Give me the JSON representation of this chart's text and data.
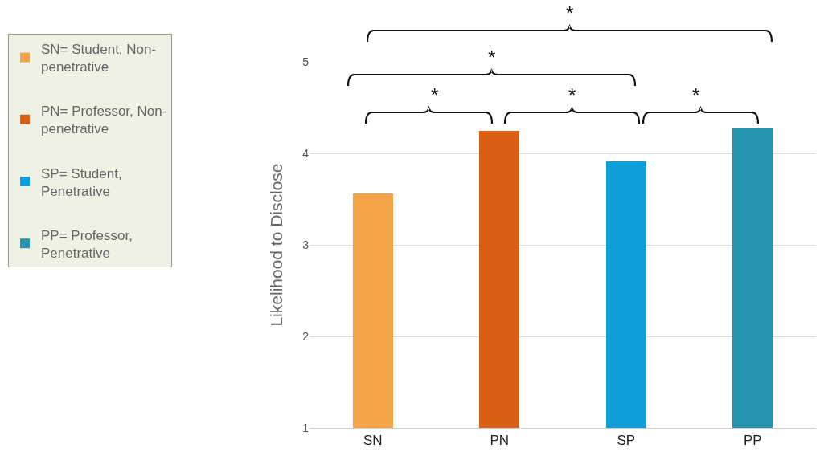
{
  "chart_data": {
    "type": "bar",
    "categories": [
      "SN",
      "PN",
      "SP",
      "PP"
    ],
    "series": [
      {
        "name": "SN= Student, Non-penetrative",
        "color": "#f4a346",
        "values": [
          3.56,
          null,
          null,
          null
        ]
      },
      {
        "name": "PN= Professor, Non-penetrative",
        "color": "#d95f14",
        "values": [
          null,
          4.25,
          null,
          null
        ]
      },
      {
        "name": "SP= Student, Penetrative",
        "color": "#0d9fd8",
        "values": [
          null,
          null,
          3.91,
          null
        ]
      },
      {
        "name": "PP= Professor, Penetrative",
        "color": "#2596ad",
        "values": [
          null,
          null,
          null,
          4.27
        ]
      }
    ],
    "stacked": true,
    "ylabel": "Likelihood to Disclose",
    "ylim": [
      1,
      5
    ],
    "yticks": [
      1,
      2,
      3,
      4,
      5
    ],
    "grid": "y",
    "legend": "left",
    "annotations": [
      "*",
      "*",
      "*",
      "*",
      "*"
    ]
  }
}
